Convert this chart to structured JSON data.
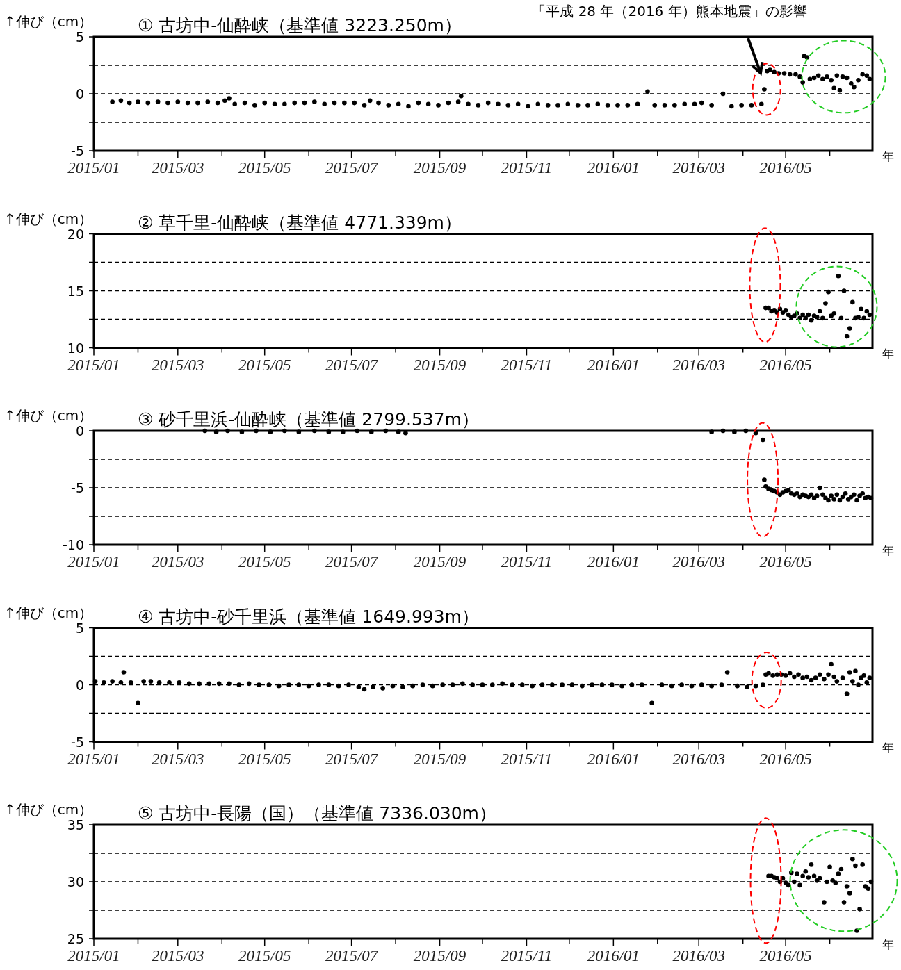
{
  "chart_data": [
    {
      "type": "scatter",
      "title": "①  古坊中-仙酔峡（基準値 3223.250m）",
      "ylabel": "↑伸び（cm）",
      "xlabel": "年",
      "color": "#000000",
      "marker": "circle",
      "grid": "y",
      "annotations": [
        "「平成 28 年（2016 年）熊本地震」の影響"
      ],
      "xlim": [
        "2015-01-01",
        "2016-07-01"
      ],
      "xticks": [
        {
          "value": "2015-01",
          "label": "2015/01"
        },
        {
          "value": "2015-02",
          "label": null
        },
        {
          "value": "2015-03",
          "label": "2015/03"
        },
        {
          "value": "2015-04",
          "label": null
        },
        {
          "value": "2015-05",
          "label": "2015/05"
        },
        {
          "value": "2015-06",
          "label": null
        },
        {
          "value": "2015-07",
          "label": "2015/07"
        },
        {
          "value": "2015-08",
          "label": null
        },
        {
          "value": "2015-09",
          "label": "2015/09"
        },
        {
          "value": "2015-10",
          "label": null
        },
        {
          "value": "2015-11",
          "label": "2015/11"
        },
        {
          "value": "2015-12",
          "label": null
        },
        {
          "value": "2016-01",
          "label": "2016/01"
        },
        {
          "value": "2016-02",
          "label": null
        },
        {
          "value": "2016-03",
          "label": "2016/03"
        },
        {
          "value": "2016-04",
          "label": null
        },
        {
          "value": "2016-05",
          "label": "2016/05"
        },
        {
          "value": "2016-06",
          "label": null
        }
      ],
      "ylim": [
        -5,
        5
      ],
      "yticks": [
        -5,
        {
          "value": -2.5,
          "label": null
        },
        0,
        {
          "value": 2.5,
          "label": null
        },
        5
      ],
      "x": [
        "2015-01-14",
        "2015-01-20",
        "2015-01-26",
        "2015-02-01",
        "2015-02-08",
        "2015-02-15",
        "2015-02-22",
        "2015-03-01",
        "2015-03-08",
        "2015-03-15",
        "2015-03-22",
        "2015-03-29",
        "2015-04-03",
        "2015-04-06",
        "2015-04-10",
        "2015-04-17",
        "2015-04-24",
        "2015-05-01",
        "2015-05-08",
        "2015-05-15",
        "2015-05-22",
        "2015-05-29",
        "2015-06-05",
        "2015-06-12",
        "2015-06-19",
        "2015-06-26",
        "2015-07-03",
        "2015-07-10",
        "2015-07-14",
        "2015-07-20",
        "2015-07-27",
        "2015-08-03",
        "2015-08-10",
        "2015-08-17",
        "2015-08-24",
        "2015-08-31",
        "2015-09-07",
        "2015-09-14",
        "2015-09-16",
        "2015-09-21",
        "2015-09-28",
        "2015-10-05",
        "2015-10-12",
        "2015-10-19",
        "2015-10-26",
        "2015-11-02",
        "2015-11-09",
        "2015-11-16",
        "2015-11-23",
        "2015-11-30",
        "2015-12-07",
        "2015-12-14",
        "2015-12-21",
        "2015-12-28",
        "2016-01-04",
        "2016-01-11",
        "2016-01-18",
        "2016-01-25",
        "2016-01-30",
        "2016-02-06",
        "2016-02-13",
        "2016-02-20",
        "2016-02-27",
        "2016-03-03",
        "2016-03-10",
        "2016-03-18",
        "2016-03-24",
        "2016-03-31",
        "2016-04-07",
        "2016-04-14",
        "2016-04-16",
        "2016-04-18",
        "2016-04-20",
        "2016-04-23",
        "2016-04-26",
        "2016-04-30",
        "2016-05-04",
        "2016-05-08",
        "2016-05-11",
        "2016-05-13",
        "2016-05-14",
        "2016-05-16",
        "2016-05-18",
        "2016-05-21",
        "2016-05-24",
        "2016-05-27",
        "2016-05-30",
        "2016-06-02",
        "2016-06-04",
        "2016-06-06",
        "2016-06-08",
        "2016-06-10",
        "2016-06-13",
        "2016-06-16",
        "2016-06-18",
        "2016-06-21",
        "2016-06-24",
        "2016-06-27",
        "2016-06-29"
      ],
      "values": [
        -0.7,
        -0.6,
        -0.8,
        -0.7,
        -0.8,
        -0.7,
        -0.8,
        -0.7,
        -0.8,
        -0.8,
        -0.7,
        -0.8,
        -0.6,
        -0.4,
        -0.9,
        -0.8,
        -1.0,
        -0.8,
        -0.9,
        -0.9,
        -0.8,
        -0.8,
        -0.7,
        -0.9,
        -0.8,
        -0.8,
        -0.8,
        -1.0,
        -0.6,
        -0.8,
        -1.0,
        -0.9,
        -1.1,
        -0.8,
        -0.9,
        -1.0,
        -0.8,
        -0.7,
        -0.2,
        -0.9,
        -1.0,
        -0.8,
        -0.9,
        -1.0,
        -0.9,
        -1.1,
        -0.9,
        -1.0,
        -1.0,
        -0.9,
        -1.0,
        -1.0,
        -0.9,
        -1.0,
        -1.0,
        -1.0,
        -0.9,
        0.2,
        -1.0,
        -1.0,
        -1.0,
        -0.9,
        -0.9,
        -0.8,
        -1.0,
        0.0,
        -1.1,
        -1.0,
        -1.0,
        -0.9,
        0.4,
        2.0,
        2.1,
        1.9,
        1.8,
        1.8,
        1.7,
        1.7,
        1.5,
        1.0,
        3.3,
        3.2,
        1.3,
        1.4,
        1.6,
        1.3,
        1.5,
        1.2,
        0.5,
        1.6,
        0.3,
        1.5,
        1.4,
        0.9,
        0.6,
        1.2,
        1.7,
        1.6,
        1.3
      ]
    },
    {
      "type": "scatter",
      "title": "②  草千里-仙酔峡（基準値 4771.339m）",
      "ylabel": "↑伸び（cm）",
      "xlabel": "年",
      "color": "#000000",
      "marker": "circle",
      "grid": "y",
      "xlim": [
        "2015-01-01",
        "2016-07-01"
      ],
      "xticks": [
        {
          "value": "2015-01",
          "label": "2015/01"
        },
        {
          "value": "2015-02",
          "label": null
        },
        {
          "value": "2015-03",
          "label": "2015/03"
        },
        {
          "value": "2015-04",
          "label": null
        },
        {
          "value": "2015-05",
          "label": "2015/05"
        },
        {
          "value": "2015-06",
          "label": null
        },
        {
          "value": "2015-07",
          "label": "2015/07"
        },
        {
          "value": "2015-08",
          "label": null
        },
        {
          "value": "2015-09",
          "label": "2015/09"
        },
        {
          "value": "2015-10",
          "label": null
        },
        {
          "value": "2015-11",
          "label": "2015/11"
        },
        {
          "value": "2015-12",
          "label": null
        },
        {
          "value": "2016-01",
          "label": "2016/01"
        },
        {
          "value": "2016-02",
          "label": null
        },
        {
          "value": "2016-03",
          "label": "2016/03"
        },
        {
          "value": "2016-04",
          "label": null
        },
        {
          "value": "2016-05",
          "label": "2016/05"
        },
        {
          "value": "2016-06",
          "label": null
        }
      ],
      "ylim": [
        10,
        20
      ],
      "yticks": [
        10,
        {
          "value": 12.5,
          "label": null
        },
        15,
        {
          "value": 17.5,
          "label": null
        },
        20
      ],
      "x": [
        "2016-04-17",
        "2016-04-19",
        "2016-04-21",
        "2016-04-23",
        "2016-04-25",
        "2016-04-27",
        "2016-04-29",
        "2016-05-01",
        "2016-05-03",
        "2016-05-05",
        "2016-05-07",
        "2016-05-09",
        "2016-05-11",
        "2016-05-13",
        "2016-05-15",
        "2016-05-17",
        "2016-05-19",
        "2016-05-21",
        "2016-05-23",
        "2016-05-25",
        "2016-05-27",
        "2016-05-29",
        "2016-05-31",
        "2016-06-02",
        "2016-06-04",
        "2016-06-07",
        "2016-06-09",
        "2016-06-11",
        "2016-06-13",
        "2016-06-15",
        "2016-06-17",
        "2016-06-19",
        "2016-06-21",
        "2016-06-23",
        "2016-06-25",
        "2016-06-27",
        "2016-06-29"
      ],
      "values": [
        13.5,
        13.5,
        13.2,
        13.3,
        13.1,
        13.4,
        13.1,
        13.3,
        12.9,
        12.7,
        12.8,
        13.0,
        12.6,
        12.9,
        12.6,
        12.9,
        12.4,
        12.8,
        12.7,
        13.2,
        12.6,
        13.9,
        14.9,
        12.8,
        13.0,
        16.3,
        12.6,
        15.0,
        11.0,
        11.7,
        14.0,
        12.6,
        12.7,
        13.4,
        12.6,
        13.2,
        12.9
      ]
    },
    {
      "type": "scatter",
      "title": "③  砂千里浜-仙酔峡（基準値 2799.537m）",
      "ylabel": "↑伸び（cm）",
      "xlabel": "年",
      "color": "#000000",
      "marker": "circle",
      "grid": "y",
      "xlim": [
        "2015-01-01",
        "2016-07-01"
      ],
      "xticks": [
        {
          "value": "2015-01",
          "label": "2015/01"
        },
        {
          "value": "2015-02",
          "label": null
        },
        {
          "value": "2015-03",
          "label": "2015/03"
        },
        {
          "value": "2015-04",
          "label": null
        },
        {
          "value": "2015-05",
          "label": "2015/05"
        },
        {
          "value": "2015-06",
          "label": null
        },
        {
          "value": "2015-07",
          "label": "2015/07"
        },
        {
          "value": "2015-08",
          "label": null
        },
        {
          "value": "2015-09",
          "label": "2015/09"
        },
        {
          "value": "2015-10",
          "label": null
        },
        {
          "value": "2015-11",
          "label": "2015/11"
        },
        {
          "value": "2015-12",
          "label": null
        },
        {
          "value": "2016-01",
          "label": "2016/01"
        },
        {
          "value": "2016-02",
          "label": null
        },
        {
          "value": "2016-03",
          "label": "2016/03"
        },
        {
          "value": "2016-04",
          "label": null
        },
        {
          "value": "2016-05",
          "label": "2016/05"
        },
        {
          "value": "2016-06",
          "label": null
        }
      ],
      "ylim": [
        -10,
        0
      ],
      "yticks": [
        -10,
        {
          "value": -7.5,
          "label": null
        },
        -5,
        {
          "value": -2.5,
          "label": null
        },
        0
      ],
      "x": [
        "2015-03-20",
        "2015-03-28",
        "2015-04-05",
        "2015-04-15",
        "2015-04-25",
        "2015-05-05",
        "2015-05-15",
        "2015-05-25",
        "2015-06-05",
        "2015-06-15",
        "2015-06-25",
        "2015-07-05",
        "2015-07-15",
        "2015-07-25",
        "2015-08-03",
        "2015-08-08",
        "2016-03-10",
        "2016-03-18",
        "2016-03-26",
        "2016-04-03",
        "2016-04-10",
        "2016-04-15",
        "2016-04-16",
        "2016-04-17",
        "2016-04-19",
        "2016-04-21",
        "2016-04-23",
        "2016-04-25",
        "2016-04-27",
        "2016-04-29",
        "2016-05-01",
        "2016-05-03",
        "2016-05-05",
        "2016-05-07",
        "2016-05-09",
        "2016-05-11",
        "2016-05-13",
        "2016-05-15",
        "2016-05-17",
        "2016-05-19",
        "2016-05-21",
        "2016-05-23",
        "2016-05-25",
        "2016-05-27",
        "2016-05-29",
        "2016-05-31",
        "2016-06-02",
        "2016-06-04",
        "2016-06-06",
        "2016-06-08",
        "2016-06-10",
        "2016-06-12",
        "2016-06-14",
        "2016-06-16",
        "2016-06-18",
        "2016-06-20",
        "2016-06-22",
        "2016-06-24",
        "2016-06-26",
        "2016-06-28",
        "2016-06-30"
      ],
      "values": [
        0,
        -0.1,
        0,
        -0.1,
        0,
        -0.1,
        0,
        -0.1,
        0,
        -0.1,
        -0.1,
        0,
        -0.1,
        0,
        -0.1,
        -0.2,
        -0.1,
        0,
        -0.1,
        0,
        -0.2,
        -0.8,
        -4.3,
        -4.9,
        -5.1,
        -5.2,
        -5.3,
        -5.4,
        -5.6,
        -5.4,
        -5.3,
        -5.2,
        -5.5,
        -5.6,
        -5.5,
        -5.8,
        -5.6,
        -5.7,
        -5.8,
        -5.6,
        -5.9,
        -5.7,
        -5.0,
        -5.6,
        -5.9,
        -6.1,
        -5.7,
        -6.0,
        -5.6,
        -6.1,
        -5.8,
        -5.5,
        -6.0,
        -5.8,
        -5.6,
        -6.1,
        -5.7,
        -5.5,
        -5.9,
        -5.8,
        -5.9
      ]
    },
    {
      "type": "scatter",
      "title": "④  古坊中-砂千里浜（基準値 1649.993m）",
      "ylabel": "↑伸び（cm）",
      "xlabel": "年",
      "color": "#000000",
      "marker": "circle",
      "grid": "y",
      "xlim": [
        "2015-01-01",
        "2016-07-01"
      ],
      "xticks": [
        {
          "value": "2015-01",
          "label": "2015/01"
        },
        {
          "value": "2015-02",
          "label": null
        },
        {
          "value": "2015-03",
          "label": "2015/03"
        },
        {
          "value": "2015-04",
          "label": null
        },
        {
          "value": "2015-05",
          "label": "2015/05"
        },
        {
          "value": "2015-06",
          "label": null
        },
        {
          "value": "2015-07",
          "label": "2015/07"
        },
        {
          "value": "2015-08",
          "label": null
        },
        {
          "value": "2015-09",
          "label": "2015/09"
        },
        {
          "value": "2015-10",
          "label": null
        },
        {
          "value": "2015-11",
          "label": "2015/11"
        },
        {
          "value": "2015-12",
          "label": null
        },
        {
          "value": "2016-01",
          "label": "2016/01"
        },
        {
          "value": "2016-02",
          "label": null
        },
        {
          "value": "2016-03",
          "label": "2016/03"
        },
        {
          "value": "2016-04",
          "label": null
        },
        {
          "value": "2016-05",
          "label": "2016/05"
        },
        {
          "value": "2016-06",
          "label": null
        }
      ],
      "ylim": [
        -5,
        5
      ],
      "yticks": [
        -5,
        {
          "value": -2.5,
          "label": null
        },
        0,
        {
          "value": 2.5,
          "label": null
        },
        5
      ],
      "x": [
        "2015-01-02",
        "2015-01-08",
        "2015-01-14",
        "2015-01-20",
        "2015-01-22",
        "2015-01-27",
        "2015-02-01",
        "2015-02-05",
        "2015-02-10",
        "2015-02-16",
        "2015-02-23",
        "2015-03-02",
        "2015-03-09",
        "2015-03-16",
        "2015-03-23",
        "2015-03-30",
        "2015-04-06",
        "2015-04-13",
        "2015-04-20",
        "2015-04-27",
        "2015-05-04",
        "2015-05-11",
        "2015-05-18",
        "2015-05-25",
        "2015-06-01",
        "2015-06-08",
        "2015-06-15",
        "2015-06-22",
        "2015-06-29",
        "2015-07-06",
        "2015-07-10",
        "2015-07-16",
        "2015-07-23",
        "2015-07-30",
        "2015-08-06",
        "2015-08-13",
        "2015-08-20",
        "2015-08-27",
        "2015-09-03",
        "2015-09-10",
        "2015-09-17",
        "2015-09-24",
        "2015-10-01",
        "2015-10-08",
        "2015-10-15",
        "2015-10-22",
        "2015-10-29",
        "2015-11-05",
        "2015-11-12",
        "2015-11-19",
        "2015-11-26",
        "2015-12-03",
        "2015-12-10",
        "2015-12-17",
        "2015-12-24",
        "2015-12-31",
        "2016-01-07",
        "2016-01-14",
        "2016-01-21",
        "2016-01-28",
        "2016-02-04",
        "2016-02-11",
        "2016-02-18",
        "2016-02-25",
        "2016-03-03",
        "2016-03-10",
        "2016-03-17",
        "2016-03-21",
        "2016-03-28",
        "2016-04-04",
        "2016-04-10",
        "2016-04-15",
        "2016-04-17",
        "2016-04-19",
        "2016-04-22",
        "2016-04-25",
        "2016-04-28",
        "2016-05-01",
        "2016-05-04",
        "2016-05-07",
        "2016-05-10",
        "2016-05-13",
        "2016-05-16",
        "2016-05-19",
        "2016-05-22",
        "2016-05-25",
        "2016-05-28",
        "2016-05-31",
        "2016-06-02",
        "2016-06-04",
        "2016-06-06",
        "2016-06-10",
        "2016-06-13",
        "2016-06-15",
        "2016-06-17",
        "2016-06-19",
        "2016-06-21",
        "2016-06-23",
        "2016-06-25",
        "2016-06-27",
        "2016-06-29"
      ],
      "values": [
        0.3,
        0.2,
        0.3,
        0.2,
        1.1,
        0.2,
        -1.6,
        0.3,
        0.3,
        0.2,
        0.2,
        0.2,
        0.1,
        0.1,
        0.1,
        0.1,
        0.1,
        0.0,
        0.1,
        0.0,
        0.0,
        -0.1,
        0.0,
        0.0,
        -0.1,
        0.0,
        0.0,
        -0.1,
        0.0,
        -0.2,
        -0.4,
        -0.2,
        -0.3,
        -0.1,
        -0.2,
        -0.1,
        0.0,
        -0.1,
        0.0,
        0.0,
        0.1,
        0.0,
        0.0,
        0.0,
        0.1,
        0.0,
        0.0,
        -0.1,
        0.0,
        0.0,
        0.0,
        0.0,
        -0.1,
        0.0,
        0.0,
        0.0,
        -0.1,
        0.0,
        0.0,
        -1.6,
        0.0,
        -0.1,
        0.0,
        -0.1,
        0.0,
        -0.1,
        0.0,
        1.1,
        -0.1,
        -0.2,
        -0.1,
        0.0,
        0.9,
        1.0,
        0.8,
        0.9,
        0.9,
        0.8,
        1.0,
        0.7,
        0.9,
        0.6,
        0.7,
        0.4,
        0.6,
        0.9,
        0.5,
        0.9,
        1.8,
        0.7,
        0.3,
        0.6,
        -0.8,
        1.1,
        0.3,
        1.2,
        0.0,
        0.6,
        0.8,
        0.2,
        0.6
      ]
    },
    {
      "type": "scatter",
      "title": "⑤  古坊中-長陽（国）（基準値 7336.030m）",
      "ylabel": "↑伸び（cm）",
      "xlabel": "年",
      "color": "#000000",
      "marker": "circle",
      "grid": "y",
      "xlim": [
        "2015-01-01",
        "2016-07-01"
      ],
      "xticks": [
        {
          "value": "2015-01",
          "label": "2015/01"
        },
        {
          "value": "2015-02",
          "label": null
        },
        {
          "value": "2015-03",
          "label": "2015/03"
        },
        {
          "value": "2015-04",
          "label": null
        },
        {
          "value": "2015-05",
          "label": "2015/05"
        },
        {
          "value": "2015-06",
          "label": null
        },
        {
          "value": "2015-07",
          "label": "2015/07"
        },
        {
          "value": "2015-08",
          "label": null
        },
        {
          "value": "2015-09",
          "label": "2015/09"
        },
        {
          "value": "2015-10",
          "label": null
        },
        {
          "value": "2015-11",
          "label": "2015/11"
        },
        {
          "value": "2015-12",
          "label": null
        },
        {
          "value": "2016-01",
          "label": "2016/01"
        },
        {
          "value": "2016-02",
          "label": null
        },
        {
          "value": "2016-03",
          "label": "2016/03"
        },
        {
          "value": "2016-04",
          "label": null
        },
        {
          "value": "2016-05",
          "label": "2016/05"
        },
        {
          "value": "2016-06",
          "label": null
        }
      ],
      "ylim": [
        25,
        35
      ],
      "yticks": [
        25,
        {
          "value": 27.5,
          "label": null
        },
        30,
        {
          "value": 32.5,
          "label": null
        },
        35
      ],
      "x": [
        "2016-04-19",
        "2016-04-21",
        "2016-04-23",
        "2016-04-25",
        "2016-04-27",
        "2016-04-29",
        "2016-05-01",
        "2016-05-03",
        "2016-05-05",
        "2016-05-07",
        "2016-05-09",
        "2016-05-11",
        "2016-05-13",
        "2016-05-15",
        "2016-05-17",
        "2016-05-19",
        "2016-05-21",
        "2016-05-23",
        "2016-05-25",
        "2016-05-28",
        "2016-05-30",
        "2016-06-01",
        "2016-06-03",
        "2016-06-05",
        "2016-06-07",
        "2016-06-09",
        "2016-06-11",
        "2016-06-13",
        "2016-06-15",
        "2016-06-17",
        "2016-06-19",
        "2016-06-20",
        "2016-06-22",
        "2016-06-24",
        "2016-06-26",
        "2016-06-28",
        "2016-06-30"
      ],
      "values": [
        30.5,
        30.5,
        30.4,
        30.3,
        30.0,
        30.3,
        29.9,
        29.7,
        30.8,
        30.0,
        30.7,
        29.7,
        30.5,
        30.9,
        30.4,
        31.5,
        30.5,
        30.1,
        30.3,
        28.2,
        30.0,
        31.3,
        30.1,
        29.9,
        30.7,
        31.1,
        28.2,
        29.6,
        29.0,
        32.0,
        31.4,
        25.7,
        27.6,
        31.5,
        29.6,
        29.4,
        30.0
      ]
    }
  ]
}
